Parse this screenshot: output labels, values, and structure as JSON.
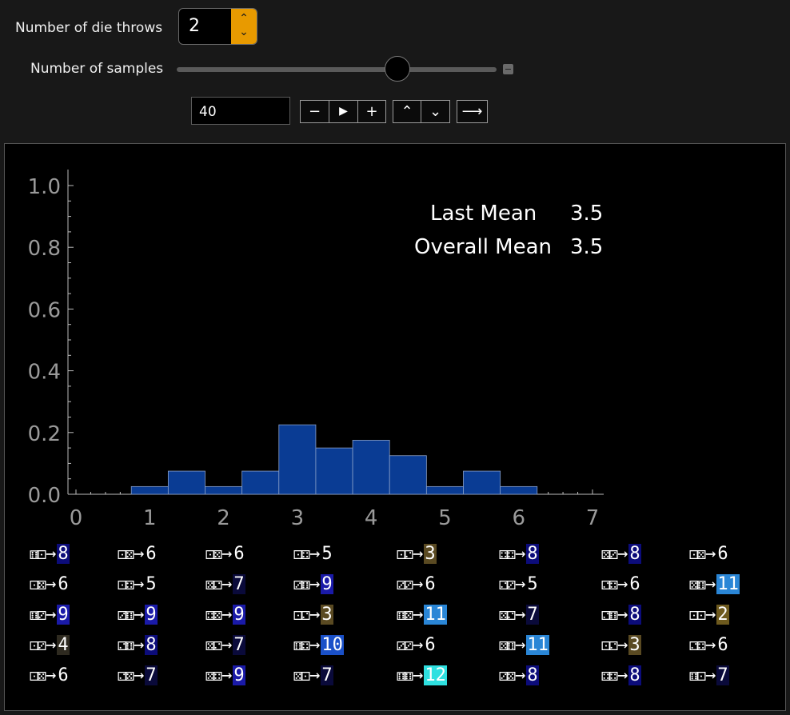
{
  "controls": {
    "throws_label": "Number of die throws",
    "throws_value": "2",
    "samples_label": "Number of samples",
    "samples_value": "40",
    "slider_fraction": 0.69,
    "buttons": {
      "minus": "−",
      "play": "▶",
      "plus": "+",
      "faster": "⌃",
      "slower": "⌄",
      "direction": "⟶"
    }
  },
  "chart_data": {
    "type": "histogram",
    "xlim": [
      0,
      7
    ],
    "ylim": [
      0,
      1.0
    ],
    "xticks": [
      "0",
      "1",
      "2",
      "3",
      "4",
      "5",
      "6",
      "7"
    ],
    "yticks": [
      "0.0",
      "0.2",
      "0.4",
      "0.6",
      "0.8",
      "1.0"
    ],
    "bin_width": 0.5,
    "bins": [
      {
        "x0": 0.75,
        "value": 0.025
      },
      {
        "x0": 1.25,
        "value": 0.075
      },
      {
        "x0": 1.75,
        "value": 0.025
      },
      {
        "x0": 2.25,
        "value": 0.075
      },
      {
        "x0": 2.75,
        "value": 0.225
      },
      {
        "x0": 3.25,
        "value": 0.15
      },
      {
        "x0": 3.75,
        "value": 0.175
      },
      {
        "x0": 4.25,
        "value": 0.125
      },
      {
        "x0": 4.75,
        "value": 0.025
      },
      {
        "x0": 5.25,
        "value": 0.075
      },
      {
        "x0": 5.75,
        "value": 0.025
      }
    ],
    "bar_color": "#0a3c94",
    "bar_edge_color": "#8aa0c8",
    "annotations": {
      "last_mean_label": "Last Mean",
      "last_mean_value": "3.5",
      "overall_mean_label": "Overall Mean",
      "overall_mean_value": "3.5"
    }
  },
  "samples": [
    [
      {
        "d": "⚅⚀",
        "s": "8"
      },
      {
        "d": "⚀⚄",
        "s": "6"
      },
      {
        "d": "⚀⚄",
        "s": "6"
      },
      {
        "d": "⚀⚃",
        "s": "5"
      },
      {
        "d": "⚀⚁",
        "s": "3"
      },
      {
        "d": "⚃⚃",
        "s": "8"
      },
      {
        "d": "⚄⚂",
        "s": "8"
      },
      {
        "d": "⚀⚄",
        "s": "6"
      }
    ],
    [
      {
        "d": "⚀⚄",
        "s": "6"
      },
      {
        "d": "⚀⚃",
        "s": "5"
      },
      {
        "d": "⚄⚁",
        "s": "7"
      },
      {
        "d": "⚂⚅",
        "s": "9"
      },
      {
        "d": "⚂⚂",
        "s": "6"
      },
      {
        "d": "⚁⚂",
        "s": "5"
      },
      {
        "d": "⚁⚃",
        "s": "6"
      },
      {
        "d": "⚄⚅",
        "s": "11"
      }
    ],
    [
      {
        "d": "⚅⚂",
        "s": "9"
      },
      {
        "d": "⚂⚅",
        "s": "9"
      },
      {
        "d": "⚃⚄",
        "s": "9"
      },
      {
        "d": "⚀⚁",
        "s": "3"
      },
      {
        "d": "⚅⚄",
        "s": "11"
      },
      {
        "d": "⚄⚁",
        "s": "7"
      },
      {
        "d": "⚁⚅",
        "s": "8"
      },
      {
        "d": "⚀⚀",
        "s": "2"
      }
    ],
    [
      {
        "d": "⚀⚂",
        "s": "4"
      },
      {
        "d": "⚁⚅",
        "s": "8"
      },
      {
        "d": "⚄⚁",
        "s": "7"
      },
      {
        "d": "⚅⚃",
        "s": "10"
      },
      {
        "d": "⚂⚂",
        "s": "6"
      },
      {
        "d": "⚄⚅",
        "s": "11"
      },
      {
        "d": "⚀⚁",
        "s": "3"
      },
      {
        "d": "⚁⚃",
        "s": "6"
      }
    ],
    [
      {
        "d": "⚀⚄",
        "s": "6"
      },
      {
        "d": "⚁⚄",
        "s": "7"
      },
      {
        "d": "⚄⚃",
        "s": "9"
      },
      {
        "d": "⚄⚀",
        "s": "7"
      },
      {
        "d": "⚅⚅",
        "s": "12"
      },
      {
        "d": "⚂⚄",
        "s": "8"
      },
      {
        "d": "⚃⚃",
        "s": "8"
      },
      {
        "d": "⚅⚀",
        "s": "7"
      }
    ]
  ],
  "sum_colors": {
    "2": {
      "bg": "#6e5a1e",
      "fg": "#ffffff"
    },
    "3": {
      "bg": "#5a4a22",
      "fg": "#ffffff"
    },
    "4": {
      "bg": "#2e2a20",
      "fg": "#ffffff"
    },
    "5": {
      "bg": "#000000",
      "fg": "#ffffff"
    },
    "6": {
      "bg": "#000000",
      "fg": "#ffffff"
    },
    "7": {
      "bg": "#0a0a3a",
      "fg": "#ffffff"
    },
    "8": {
      "bg": "#0c0c7a",
      "fg": "#ffffff"
    },
    "9": {
      "bg": "#1a1aa8",
      "fg": "#ffffff"
    },
    "10": {
      "bg": "#1a50c8",
      "fg": "#ffffff"
    },
    "11": {
      "bg": "#2a86d6",
      "fg": "#ffffff"
    },
    "12": {
      "bg": "#2ee0e0",
      "fg": "#ffffff"
    }
  }
}
